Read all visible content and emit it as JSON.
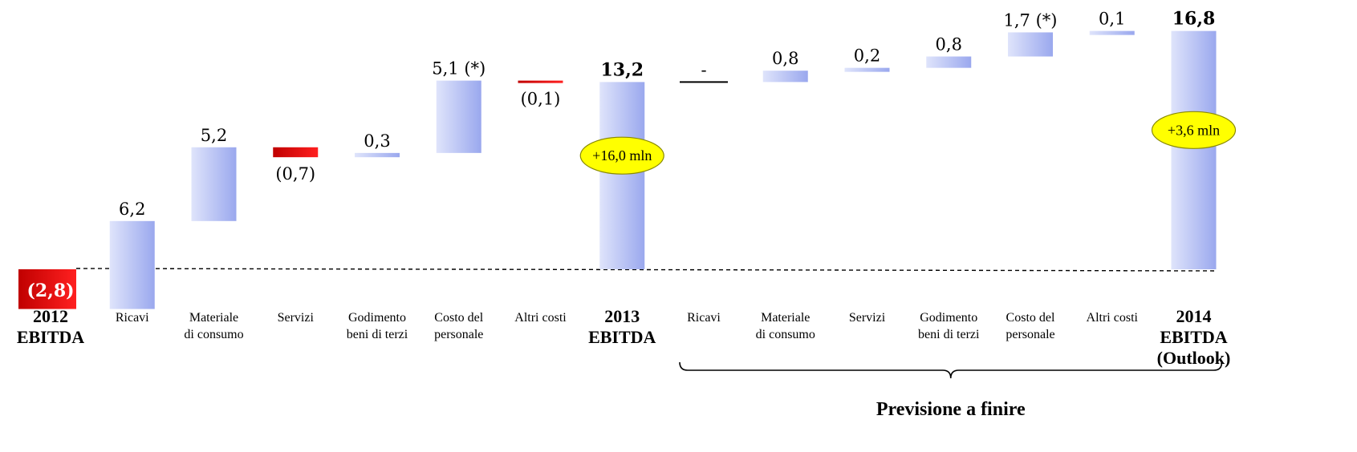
{
  "chart_data": {
    "type": "waterfall",
    "title": "",
    "xlabel": "",
    "ylabel": "",
    "ylim": [
      -3.5,
      18
    ],
    "colors": {
      "positive_start": "#dfe4fb",
      "positive_end": "#9aa8ee",
      "negative_start": "#c00000",
      "negative_end": "#ff2020",
      "badge_fill": "#ffff00",
      "badge_stroke": "#8a8a00",
      "baseline": "#000000"
    },
    "steps": [
      {
        "category": "2012\nEBITDA",
        "kind": "start",
        "value": -2.8,
        "label": "(2,8)"
      },
      {
        "category": "Ricavi",
        "kind": "delta",
        "value": 6.2,
        "label": "6,2"
      },
      {
        "category": "Materiale\ndi consumo",
        "kind": "delta",
        "value": 5.2,
        "label": "5,2"
      },
      {
        "category": "Servizi",
        "kind": "delta",
        "value": -0.7,
        "label": "(0,7)"
      },
      {
        "category": "Godimento\nbeni di terzi",
        "kind": "delta",
        "value": 0.3,
        "label": "0,3"
      },
      {
        "category": "Costo del\npersonale",
        "kind": "delta",
        "value": 5.1,
        "label": "5,1 (*)"
      },
      {
        "category": "Altri costi",
        "kind": "delta",
        "value": -0.1,
        "label": "(0,1)"
      },
      {
        "category": "2013\nEBITDA",
        "kind": "total",
        "value": 13.2,
        "label": "13,2"
      },
      {
        "category": "Ricavi",
        "kind": "delta",
        "value": 0.0,
        "label": "-"
      },
      {
        "category": "Materiale\ndi consumo",
        "kind": "delta",
        "value": 0.8,
        "label": "0,8"
      },
      {
        "category": "Servizi",
        "kind": "delta",
        "value": 0.2,
        "label": "0,2"
      },
      {
        "category": "Godimento\nbeni di terzi",
        "kind": "delta",
        "value": 0.8,
        "label": "0,8"
      },
      {
        "category": "Costo del\npersonale",
        "kind": "delta",
        "value": 1.7,
        "label": "1,7 (*)"
      },
      {
        "category": "Altri costi",
        "kind": "delta",
        "value": 0.1,
        "label": "0,1"
      },
      {
        "category": "2014\nEBITDA\n(Outlook)",
        "kind": "total",
        "value": 16.8,
        "label": "16,8"
      }
    ],
    "annotations": [
      {
        "text": "+16,0 mln",
        "step_index": 7
      },
      {
        "text": "+3,6 mln",
        "step_index": 14
      }
    ],
    "bracket": {
      "label": "Previsione a finire",
      "from_index": 8,
      "to_index": 14
    }
  }
}
